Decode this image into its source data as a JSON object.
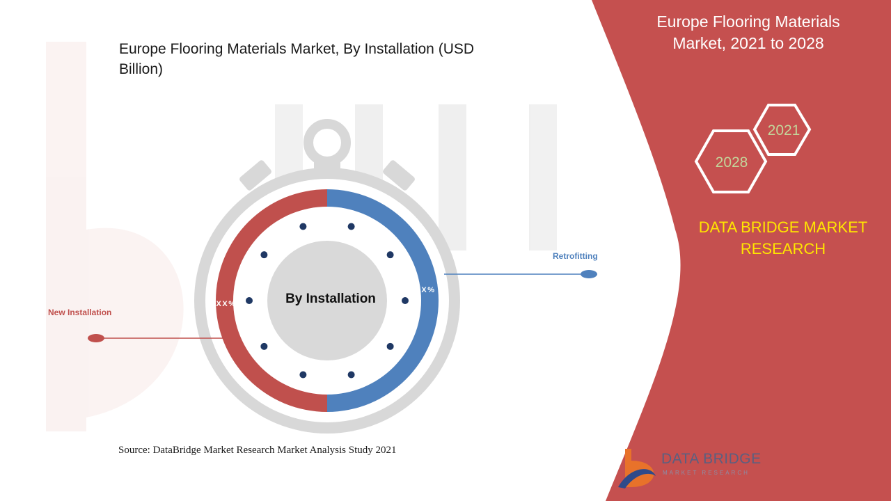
{
  "header": {
    "title": "Europe Flooring Materials Market, 2021 to 2028",
    "year_start": "2021",
    "year_end": "2028",
    "brand": "DATA BRIDGE MARKET RESEARCH"
  },
  "chart_data": {
    "type": "pie",
    "title": "Europe Flooring Materials Market, By Installation (USD Billion)",
    "center_label": "By Installation",
    "categories": [
      "New Installation",
      "Retrofitting"
    ],
    "values": [
      50,
      50
    ],
    "data_labels": [
      "XX%",
      "XX%"
    ],
    "colors": [
      "#c0504d",
      "#4f81bd"
    ],
    "legend_position": "callouts"
  },
  "source": "Source: DataBridge Market Research Market Analysis Study 2021",
  "logo": {
    "name": "DATA BRIDGE",
    "tagline": "MARKET RESEARCH"
  },
  "colors": {
    "banner": "#c5504f",
    "stopwatch_gray": "#d8d8d8",
    "inner_circle": "#d9d9d9",
    "dot": "#1f3864",
    "hex_text": "#c3d69b",
    "brand_yellow": "#ffe600"
  }
}
